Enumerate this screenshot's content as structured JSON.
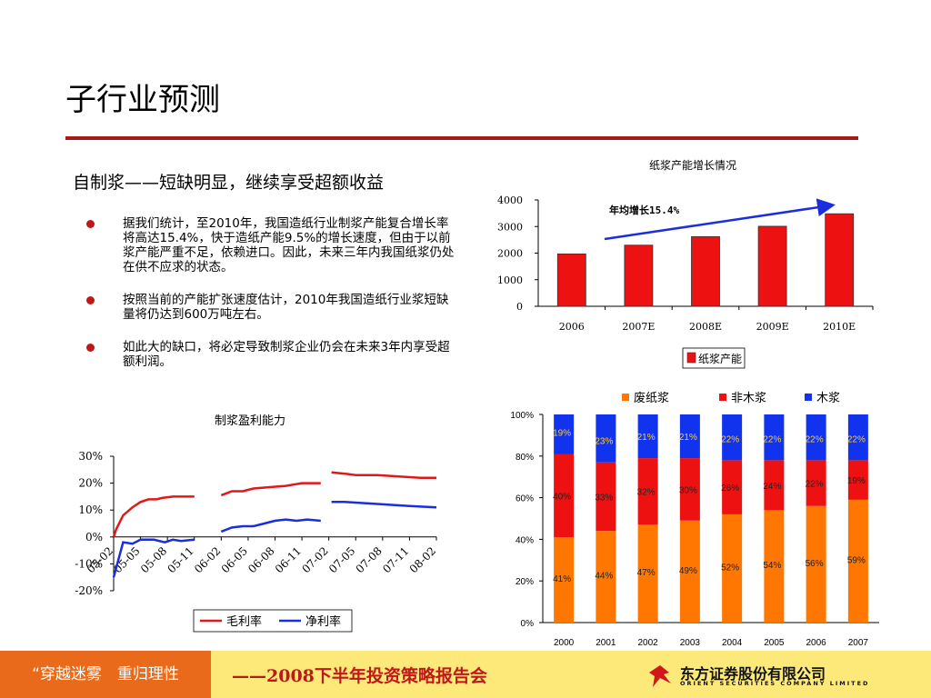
{
  "page": {
    "title": "子行业预测",
    "subtitle": "自制浆——短缺明显，继续享受超额收益",
    "bullets": [
      "据我们统计，至2010年，我国造纸行业制浆产能复合增长率将高达15.4%，快于造纸产能9.5%的增长速度，但由于以前浆产能严重不足，依赖进口。因此，未来三年内我国纸浆仍处在供不应求的状态。",
      "按照当前的产能扩张速度估计，2010年我国造纸行业浆短缺量将仍达到600万吨左右。",
      "如此大的缺口，将必定导致制浆企业仍会在未来3年内享受超额利润。"
    ]
  },
  "footer": {
    "slogan": "“穿越迷雾　重归理性",
    "report": "——2008下半年投资策略报告会",
    "company_cn": "东方证券股份有限公司",
    "company_en": "ORIENT SECURITIES COMPANY LIMITED",
    "logo_icon": "orient-securities-logo-icon"
  },
  "colors": {
    "accent_red": "#a81a1a",
    "bar_red": "#ee1111",
    "gross_line": "#e01818",
    "net_line": "#1a2ee0",
    "waste": "#ff7700",
    "nonwood": "#ee1111",
    "wood": "#1133ee",
    "footer_orange": "#e86a1a",
    "footer_yellow": "#fce97a"
  },
  "chart_data": [
    {
      "type": "bar",
      "title": "纸浆产能增长情况",
      "categories": [
        "2006",
        "2007E",
        "2008E",
        "2009E",
        "2010E"
      ],
      "series": [
        {
          "name": "纸浆产能",
          "values": [
            1970,
            2300,
            2620,
            3010,
            3480
          ]
        }
      ],
      "yticks": [
        "0",
        "1000",
        "2000",
        "3000",
        "4000"
      ],
      "ylim": [
        0,
        4000
      ],
      "annotation": "年均增长15.4%",
      "legend": "bottom"
    },
    {
      "type": "line",
      "title": "制浆盈利能力",
      "xticks": [
        "05-02",
        "05-05",
        "05-08",
        "05-11",
        "06-02",
        "06-05",
        "06-08",
        "06-11",
        "07-02",
        "07-05",
        "07-08",
        "07-11",
        "08-02"
      ],
      "yticks": [
        "30%",
        "20%",
        "10%",
        "0%",
        "-10%",
        "-20%"
      ],
      "ylim": [
        -20,
        30
      ],
      "series": [
        {
          "name": "毛利率",
          "segments": [
            [
              [
                0,
                0
              ],
              [
                0.1,
                3
              ],
              [
                0.35,
                8
              ],
              [
                0.7,
                11
              ],
              [
                1.0,
                13
              ],
              [
                1.3,
                14
              ],
              [
                1.6,
                14
              ],
              [
                1.8,
                14.5
              ],
              [
                2.2,
                15
              ],
              [
                2.6,
                15
              ],
              [
                3.0,
                15
              ]
            ],
            [
              [
                4.0,
                15.5
              ],
              [
                4.4,
                17
              ],
              [
                4.8,
                17
              ],
              [
                5.2,
                18
              ],
              [
                5.8,
                18.5
              ],
              [
                6.4,
                19
              ],
              [
                7.0,
                20
              ],
              [
                7.7,
                20
              ]
            ],
            [
              [
                8.1,
                24
              ],
              [
                8.6,
                23.5
              ],
              [
                9.0,
                23
              ],
              [
                9.8,
                23
              ],
              [
                10.6,
                22.5
              ],
              [
                11.4,
                22
              ],
              [
                12.0,
                22
              ]
            ]
          ]
        },
        {
          "name": "净利率",
          "segments": [
            [
              [
                0,
                -15
              ],
              [
                0.35,
                -2
              ],
              [
                0.7,
                -2.5
              ],
              [
                1.0,
                -1
              ],
              [
                1.5,
                -1
              ],
              [
                1.9,
                -2
              ],
              [
                2.2,
                -1
              ],
              [
                2.5,
                -1.5
              ],
              [
                3.0,
                -1
              ]
            ],
            [
              [
                4.0,
                2
              ],
              [
                4.4,
                3.5
              ],
              [
                4.8,
                4
              ],
              [
                5.2,
                4
              ],
              [
                5.6,
                5
              ],
              [
                6.0,
                6
              ],
              [
                6.4,
                6.5
              ],
              [
                6.8,
                6
              ],
              [
                7.2,
                6.5
              ],
              [
                7.7,
                6
              ]
            ],
            [
              [
                8.1,
                13
              ],
              [
                8.6,
                13
              ],
              [
                9.4,
                12.5
              ],
              [
                10.2,
                12
              ],
              [
                11.0,
                11.5
              ],
              [
                12.0,
                11
              ]
            ]
          ]
        }
      ],
      "legend": "bottom"
    },
    {
      "type": "bar",
      "stacked": true,
      "categories": [
        "2000",
        "2001",
        "2002",
        "2003",
        "2004",
        "2005",
        "2006",
        "2007"
      ],
      "series": [
        {
          "name": "废纸浆",
          "values": [
            41,
            44,
            47,
            49,
            52,
            54,
            56,
            59
          ]
        },
        {
          "name": "非木浆",
          "values": [
            40,
            33,
            32,
            30,
            26,
            24,
            22,
            19
          ]
        },
        {
          "name": "木浆",
          "values": [
            19,
            23,
            21,
            21,
            22,
            22,
            22,
            22
          ]
        }
      ],
      "yticks": [
        "0%",
        "20%",
        "40%",
        "60%",
        "80%",
        "100%"
      ],
      "ylim": [
        0,
        100
      ],
      "legend": "top"
    }
  ]
}
